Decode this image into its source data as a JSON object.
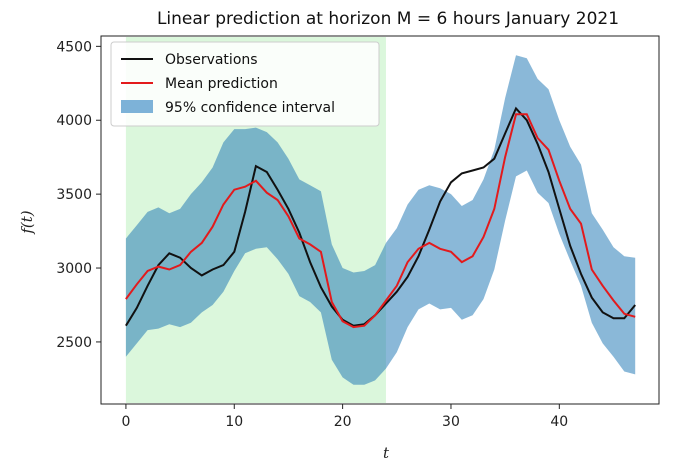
{
  "chart_data": {
    "type": "line",
    "title": "Linear prediction at horizon M = 6 hours January 2021",
    "xlabel": "t",
    "ylabel": "f(t)",
    "xlim": [
      -2.3,
      49.2
    ],
    "ylim": [
      2080,
      4570
    ],
    "xticks": [
      0,
      10,
      20,
      30,
      40
    ],
    "yticks": [
      2500,
      3000,
      3500,
      4000,
      4500
    ],
    "grid": false,
    "legend_position": "top-left",
    "shaded_region": {
      "x_start": 0,
      "x_end": 24,
      "color": "#dbf7dc"
    },
    "series": [
      {
        "name": "Observations",
        "kind": "line",
        "color": "#111111",
        "x": [
          0,
          1,
          2,
          3,
          4,
          5,
          6,
          7,
          8,
          9,
          10,
          11,
          12,
          13,
          14,
          15,
          16,
          17,
          18,
          19,
          20,
          21,
          22,
          23,
          24,
          25,
          26,
          27,
          28,
          29,
          30,
          31,
          32,
          33,
          34,
          35,
          36,
          37,
          38,
          39,
          40,
          41,
          42,
          43,
          44,
          45,
          46,
          47
        ],
        "y": [
          2610,
          2730,
          2880,
          3020,
          3100,
          3070,
          3000,
          2950,
          2990,
          3020,
          3110,
          3380,
          3690,
          3650,
          3530,
          3400,
          3240,
          3040,
          2870,
          2740,
          2650,
          2610,
          2620,
          2680,
          2760,
          2840,
          2940,
          3080,
          3260,
          3450,
          3580,
          3640,
          3660,
          3680,
          3740,
          3910,
          4080,
          4000,
          3840,
          3650,
          3400,
          3150,
          2960,
          2800,
          2700,
          2660,
          2660,
          2750
        ]
      },
      {
        "name": "Mean prediction",
        "kind": "line",
        "color": "#e31a1c",
        "x": [
          0,
          1,
          2,
          3,
          4,
          5,
          6,
          7,
          8,
          9,
          10,
          11,
          12,
          13,
          14,
          15,
          16,
          17,
          18,
          19,
          20,
          21,
          22,
          23,
          24,
          25,
          26,
          27,
          28,
          29,
          30,
          31,
          32,
          33,
          34,
          35,
          36,
          37,
          38,
          39,
          40,
          41,
          42,
          43,
          44,
          45,
          46,
          47
        ],
        "y": [
          2790,
          2890,
          2980,
          3010,
          2990,
          3020,
          3110,
          3170,
          3280,
          3430,
          3530,
          3550,
          3590,
          3510,
          3460,
          3350,
          3200,
          3160,
          3110,
          2770,
          2640,
          2600,
          2610,
          2680,
          2780,
          2880,
          3040,
          3130,
          3170,
          3130,
          3110,
          3040,
          3080,
          3210,
          3400,
          3750,
          4040,
          4040,
          3880,
          3800,
          3590,
          3400,
          3300,
          2990,
          2880,
          2780,
          2690,
          2670
        ]
      },
      {
        "name": "95% confidence interval",
        "kind": "band",
        "color": "#7db2d8",
        "x": [
          0,
          1,
          2,
          3,
          4,
          5,
          6,
          7,
          8,
          9,
          10,
          11,
          12,
          13,
          14,
          15,
          16,
          17,
          18,
          19,
          20,
          21,
          22,
          23,
          24,
          25,
          26,
          27,
          28,
          29,
          30,
          31,
          32,
          33,
          34,
          35,
          36,
          37,
          38,
          39,
          40,
          41,
          42,
          43,
          44,
          45,
          46,
          47
        ],
        "lower": [
          2400,
          2490,
          2580,
          2590,
          2620,
          2600,
          2630,
          2700,
          2750,
          2840,
          2980,
          3100,
          3130,
          3140,
          3060,
          2960,
          2810,
          2770,
          2700,
          2380,
          2260,
          2210,
          2210,
          2240,
          2320,
          2430,
          2600,
          2720,
          2760,
          2720,
          2730,
          2650,
          2680,
          2790,
          2990,
          3320,
          3620,
          3660,
          3510,
          3440,
          3230,
          3050,
          2880,
          2630,
          2490,
          2400,
          2300,
          2280
        ],
        "upper": [
          3200,
          3290,
          3380,
          3410,
          3370,
          3400,
          3500,
          3580,
          3680,
          3850,
          3940,
          3940,
          3950,
          3920,
          3850,
          3740,
          3600,
          3560,
          3520,
          3160,
          3000,
          2970,
          2980,
          3020,
          3170,
          3270,
          3430,
          3530,
          3560,
          3540,
          3500,
          3420,
          3460,
          3600,
          3800,
          4150,
          4440,
          4420,
          4280,
          4210,
          4000,
          3820,
          3700,
          3370,
          3260,
          3140,
          3080,
          3070
        ]
      }
    ]
  }
}
